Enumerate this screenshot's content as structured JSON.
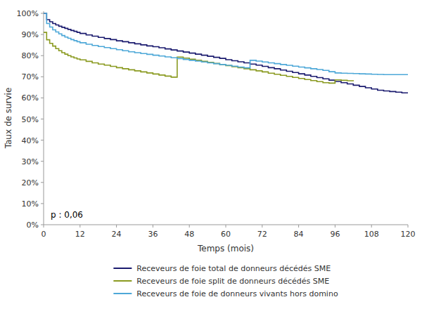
{
  "chart_data": {
    "type": "step",
    "xlabel": "Temps (mois)",
    "ylabel": "Taux de survie",
    "annotation": "p : 0,06",
    "legend": "bottom",
    "grid": false,
    "xlim": [
      0,
      120
    ],
    "ylim": [
      0,
      1.01
    ],
    "xticks": [
      0,
      12,
      24,
      36,
      48,
      60,
      72,
      84,
      96,
      108,
      120
    ],
    "yticks": [
      {
        "value": 0.0,
        "label": "0%"
      },
      {
        "value": 0.1,
        "label": "10%"
      },
      {
        "value": 0.2,
        "label": "20%"
      },
      {
        "value": 0.3,
        "label": "30%"
      },
      {
        "value": 0.4,
        "label": "40%"
      },
      {
        "value": 0.5,
        "label": "50%"
      },
      {
        "value": 0.6,
        "label": "60%"
      },
      {
        "value": 0.7,
        "label": "70%"
      },
      {
        "value": 0.8,
        "label": "80%"
      },
      {
        "value": 0.9,
        "label": "90%"
      },
      {
        "value": 1.0,
        "label": "100%"
      }
    ],
    "x": [
      0,
      1,
      2,
      3,
      4,
      5,
      6,
      7,
      8,
      9,
      10,
      11,
      12,
      14,
      16,
      18,
      20,
      22,
      24,
      26,
      28,
      30,
      32,
      34,
      36,
      38,
      40,
      42,
      44,
      46,
      48,
      50,
      52,
      54,
      56,
      58,
      60,
      62,
      64,
      66,
      68,
      70,
      72,
      74,
      76,
      78,
      80,
      82,
      84,
      86,
      88,
      90,
      92,
      94,
      96,
      98,
      100,
      102,
      104,
      106,
      108,
      110,
      112,
      114,
      116,
      118,
      120
    ],
    "series": [
      {
        "name": "Receveurs de foie total de donneurs décédés SME",
        "color": "#1a1a6e",
        "values": [
          1.0,
          0.97,
          0.96,
          0.952,
          0.945,
          0.939,
          0.934,
          0.929,
          0.924,
          0.919,
          0.915,
          0.91,
          0.905,
          0.898,
          0.892,
          0.886,
          0.881,
          0.876,
          0.87,
          0.866,
          0.861,
          0.856,
          0.851,
          0.846,
          0.842,
          0.837,
          0.832,
          0.827,
          0.822,
          0.817,
          0.812,
          0.807,
          0.802,
          0.797,
          0.792,
          0.787,
          0.781,
          0.776,
          0.771,
          0.766,
          0.76,
          0.755,
          0.749,
          0.743,
          0.738,
          0.732,
          0.726,
          0.72,
          0.714,
          0.708,
          0.702,
          0.696,
          0.69,
          0.684,
          0.678,
          0.672,
          0.666,
          0.66,
          0.654,
          0.648,
          0.642,
          0.636,
          0.633,
          0.63,
          0.627,
          0.624,
          0.622
        ]
      },
      {
        "name": "Receveurs de foie split de donneurs décédés SME",
        "color": "#8a9a20",
        "values": [
          0.91,
          0.875,
          0.858,
          0.845,
          0.833,
          0.823,
          0.814,
          0.807,
          0.8,
          0.794,
          0.789,
          0.784,
          0.78,
          0.773,
          0.766,
          0.76,
          0.755,
          0.749,
          0.743,
          0.738,
          0.733,
          0.728,
          0.723,
          0.718,
          0.713,
          0.708,
          0.703,
          0.698,
          0.793,
          0.788,
          0.783,
          0.778,
          0.773,
          0.768,
          0.763,
          0.758,
          0.753,
          0.748,
          0.743,
          0.738,
          0.733,
          0.728,
          0.723,
          0.717,
          0.712,
          0.707,
          0.702,
          0.697,
          0.692,
          0.687,
          0.682,
          0.677,
          0.672,
          0.67,
          0.685,
          0.683,
          0.681,
          0.679,
          null,
          null,
          null,
          null,
          null,
          null,
          null,
          null,
          null
        ]
      },
      {
        "name": "Receveurs de foie de donneurs vivants hors domino",
        "color": "#4da8d8",
        "values": [
          1.0,
          0.952,
          0.935,
          0.922,
          0.912,
          0.903,
          0.895,
          0.888,
          0.882,
          0.876,
          0.871,
          0.866,
          0.861,
          0.854,
          0.848,
          0.843,
          0.838,
          0.833,
          0.828,
          0.823,
          0.818,
          0.814,
          0.81,
          0.806,
          0.802,
          0.798,
          0.794,
          0.79,
          0.786,
          0.782,
          0.778,
          0.774,
          0.77,
          0.766,
          0.762,
          0.758,
          0.754,
          0.75,
          0.746,
          0.742,
          0.778,
          0.774,
          0.77,
          0.766,
          0.762,
          0.758,
          0.754,
          0.75,
          0.746,
          0.742,
          0.738,
          0.734,
          0.73,
          0.724,
          0.718,
          0.717,
          0.716,
          0.715,
          0.714,
          0.713,
          0.712,
          0.711,
          0.71,
          0.71,
          0.71,
          0.71,
          0.71
        ]
      }
    ]
  }
}
